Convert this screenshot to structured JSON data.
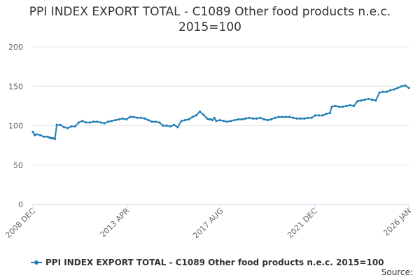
{
  "chart_data": {
    "type": "line",
    "title": "PPI INDEX EXPORT TOTAL - C1089 Other food products n.e.c. 2015=100",
    "x_tick_labels": [
      "2008 DEC",
      "2013 APR",
      "2017 AUG",
      "2021 DEC",
      "2026 JAN"
    ],
    "x_range": [
      "2008-12",
      "2026-01"
    ],
    "ylim": [
      0,
      200
    ],
    "y_ticks": [
      0,
      50,
      100,
      150,
      200
    ],
    "grid": true,
    "legend_position": "bottom",
    "series": [
      {
        "name": "PPI INDEX EXPORT TOTAL - C1089 Other food products n.e.c. 2015=100",
        "color": "#1f7fb6",
        "x": [
          "2008-12",
          "2009-01",
          "2009-02",
          "2009-04",
          "2009-06",
          "2009-08",
          "2009-09",
          "2009-10",
          "2009-11",
          "2009-12",
          "2010-01",
          "2010-03",
          "2010-05",
          "2010-07",
          "2010-09",
          "2010-11",
          "2011-01",
          "2011-03",
          "2011-05",
          "2011-07",
          "2011-09",
          "2011-11",
          "2012-01",
          "2012-03",
          "2012-05",
          "2012-07",
          "2012-09",
          "2012-11",
          "2013-01",
          "2013-03",
          "2013-05",
          "2013-07",
          "2013-09",
          "2013-11",
          "2014-01",
          "2014-03",
          "2014-05",
          "2014-07",
          "2014-09",
          "2014-11",
          "2015-01",
          "2015-03",
          "2015-05",
          "2015-07",
          "2015-09",
          "2015-11",
          "2016-01",
          "2016-03",
          "2016-05",
          "2016-07",
          "2016-09",
          "2016-11",
          "2016-12",
          "2017-01",
          "2017-02",
          "2017-03",
          "2017-04",
          "2017-06",
          "2017-08",
          "2017-10",
          "2017-12",
          "2018-02",
          "2018-04",
          "2018-06",
          "2018-08",
          "2018-10",
          "2018-12",
          "2019-02",
          "2019-04",
          "2019-06",
          "2019-08",
          "2019-10",
          "2019-12",
          "2020-02",
          "2020-04",
          "2020-06",
          "2020-08",
          "2020-10",
          "2020-12",
          "2021-02",
          "2021-04",
          "2021-06",
          "2021-08",
          "2021-10",
          "2021-12",
          "2022-02",
          "2022-04",
          "2022-06",
          "2022-07",
          "2022-09",
          "2022-11",
          "2023-01",
          "2023-03",
          "2023-05",
          "2023-07",
          "2023-09",
          "2023-11",
          "2024-01",
          "2024-03",
          "2024-05",
          "2024-07",
          "2024-09",
          "2024-11",
          "2025-01",
          "2025-03",
          "2025-05",
          "2025-07",
          "2025-09",
          "2025-11",
          "2026-01"
        ],
        "y": [
          92,
          88,
          89,
          88,
          86,
          86,
          85,
          84,
          84,
          83,
          101,
          101,
          98,
          97,
          99,
          99,
          104,
          106,
          104,
          104,
          105,
          105,
          104,
          103,
          105,
          106,
          107,
          108,
          109,
          108,
          111,
          111,
          110,
          110,
          109,
          107,
          105,
          105,
          104,
          100,
          100,
          99,
          101,
          98,
          106,
          107,
          108,
          111,
          113,
          118,
          114,
          109,
          108,
          108,
          107,
          110,
          106,
          107,
          106,
          105,
          106,
          107,
          108,
          108,
          109,
          110,
          109,
          109,
          110,
          108,
          107,
          108,
          110,
          111,
          111,
          111,
          111,
          110,
          109,
          109,
          109,
          110,
          110,
          113,
          113,
          113,
          115,
          116,
          124,
          125,
          124,
          124,
          125,
          126,
          125,
          131,
          132,
          133,
          134,
          133,
          132,
          142,
          143,
          143,
          145,
          146,
          148,
          150,
          151,
          148
        ]
      }
    ]
  },
  "legend": {
    "label": "PPI INDEX EXPORT TOTAL - C1089 Other food products n.e.c. 2015=100"
  },
  "footer": {
    "source_label": "Source:"
  }
}
